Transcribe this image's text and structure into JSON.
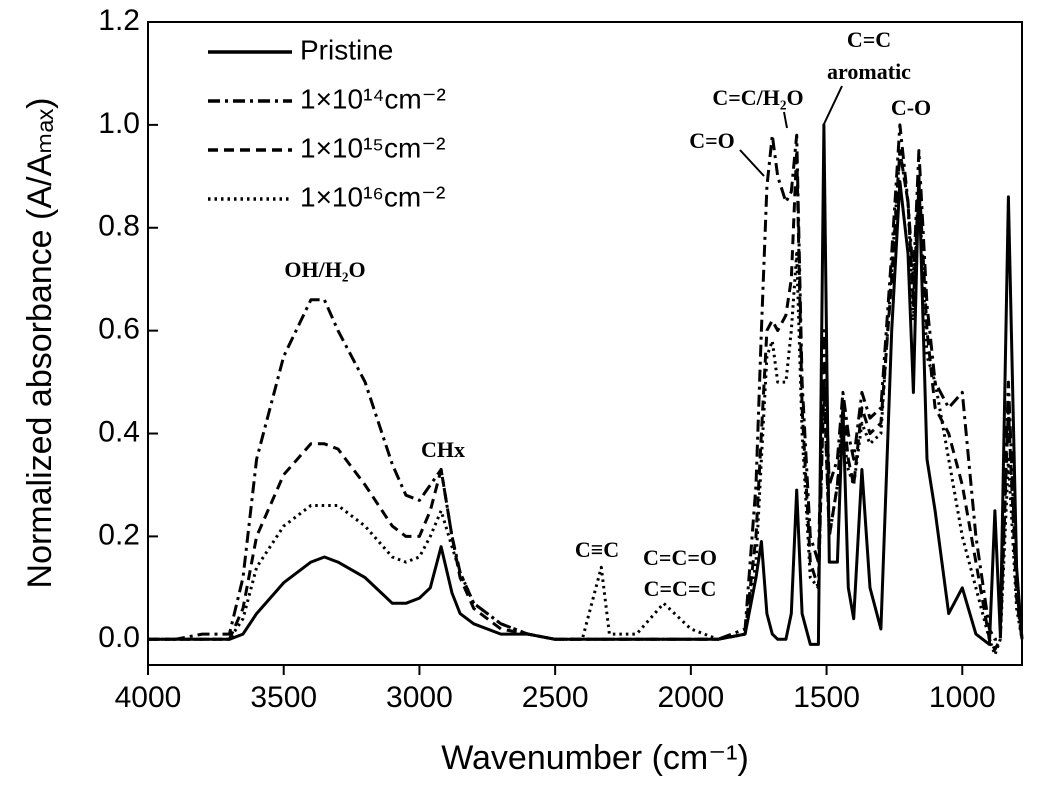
{
  "chart_data": {
    "type": "line",
    "xlabel": "Wavenumber (cm⁻¹)",
    "ylabel": "Normalized absorbance (A/Aₘₐₓ)",
    "x": [
      4000,
      3900,
      3800,
      3700,
      3650,
      3600,
      3500,
      3400,
      3350,
      3300,
      3200,
      3100,
      3050,
      3000,
      2960,
      2920,
      2880,
      2850,
      2800,
      2700,
      2600,
      2500,
      2400,
      2330,
      2300,
      2200,
      2100,
      2000,
      1900,
      1800,
      1760,
      1740,
      1720,
      1700,
      1680,
      1650,
      1630,
      1610,
      1590,
      1560,
      1530,
      1510,
      1490,
      1460,
      1440,
      1420,
      1400,
      1370,
      1340,
      1300,
      1260,
      1230,
      1200,
      1180,
      1160,
      1130,
      1100,
      1050,
      1000,
      950,
      900,
      880,
      860,
      830,
      800,
      780
    ],
    "series": [
      {
        "name": "Pristine",
        "color": "#000000",
        "line_style": "solid",
        "values": [
          0,
          0,
          0,
          0,
          0.01,
          0.05,
          0.11,
          0.15,
          0.16,
          0.15,
          0.12,
          0.07,
          0.07,
          0.08,
          0.1,
          0.18,
          0.09,
          0.05,
          0.03,
          0.01,
          0.01,
          0,
          0,
          0,
          0,
          0,
          0,
          0,
          0,
          0.01,
          0.12,
          0.19,
          0.05,
          0.01,
          0,
          0,
          0.05,
          0.29,
          0.05,
          -0.01,
          -0.01,
          1.0,
          0.15,
          0.15,
          0.45,
          0.1,
          0.04,
          0.33,
          0.1,
          0.02,
          0.6,
          0.89,
          0.75,
          0.48,
          0.9,
          0.35,
          0.25,
          0.05,
          0.1,
          0.01,
          -0.01,
          0.25,
          0.01,
          0.86,
          0.14,
          0
        ]
      },
      {
        "name": "1×10¹⁴cm⁻²",
        "color": "#000000",
        "line_style": "dashdot",
        "values": [
          0,
          0,
          0.01,
          0.01,
          0.12,
          0.35,
          0.55,
          0.66,
          0.66,
          0.6,
          0.5,
          0.34,
          0.28,
          0.27,
          0.3,
          0.33,
          0.2,
          0.13,
          0.07,
          0.03,
          0.01,
          0,
          0,
          0,
          0,
          0,
          0,
          0,
          0,
          0.02,
          0.3,
          0.6,
          0.88,
          0.98,
          0.9,
          0.85,
          0.87,
          0.98,
          0.5,
          0.2,
          0.15,
          0.6,
          0.3,
          0.35,
          0.48,
          0.4,
          0.35,
          0.48,
          0.43,
          0.45,
          0.75,
          1.0,
          0.85,
          0.7,
          0.95,
          0.65,
          0.5,
          0.45,
          0.48,
          0.2,
          0.02,
          0,
          0,
          0.5,
          0.1,
          0
        ]
      },
      {
        "name": "1×10¹⁵cm⁻²",
        "color": "#000000",
        "line_style": "dashed",
        "values": [
          0,
          0,
          0,
          0,
          0.06,
          0.2,
          0.32,
          0.38,
          0.38,
          0.37,
          0.3,
          0.22,
          0.2,
          0.2,
          0.25,
          0.33,
          0.2,
          0.12,
          0.06,
          0.02,
          0.01,
          0,
          0,
          0,
          0,
          0,
          0,
          0,
          0,
          0.01,
          0.2,
          0.4,
          0.6,
          0.62,
          0.6,
          0.63,
          0.7,
          0.95,
          0.45,
          0.15,
          0.1,
          0.5,
          0.2,
          0.3,
          0.45,
          0.35,
          0.3,
          0.45,
          0.4,
          0.42,
          0.7,
          0.95,
          0.85,
          0.65,
          0.9,
          0.6,
          0.45,
          0.4,
          0.3,
          0.15,
          0,
          -0.02,
          0,
          0.45,
          0.08,
          0
        ]
      },
      {
        "name": "1×10¹⁶cm⁻²",
        "color": "#000000",
        "line_style": "dotted",
        "values": [
          0,
          0,
          0,
          0,
          0.04,
          0.14,
          0.22,
          0.26,
          0.26,
          0.26,
          0.22,
          0.16,
          0.15,
          0.16,
          0.2,
          0.25,
          0.18,
          0.13,
          0.07,
          0.03,
          0.01,
          0,
          0,
          0.14,
          0.01,
          0.01,
          0.07,
          0.02,
          0,
          0.01,
          0.15,
          0.35,
          0.55,
          0.58,
          0.5,
          0.5,
          0.6,
          0.75,
          0.4,
          0.12,
          0.1,
          0.5,
          0.2,
          0.3,
          0.4,
          0.33,
          0.3,
          0.42,
          0.38,
          0.4,
          0.72,
          0.95,
          0.85,
          0.62,
          0.88,
          0.55,
          0.5,
          0.35,
          0.2,
          0.1,
          0,
          -0.03,
          0,
          0.35,
          0.06,
          0
        ]
      }
    ],
    "xlim": [
      4000,
      780
    ],
    "ylim": [
      -0.05,
      1.2
    ],
    "xticks": [
      4000,
      3500,
      3000,
      2500,
      2000,
      1500,
      1000
    ],
    "yticks": [
      {
        "value": 0,
        "label": "0.0"
      },
      0.2,
      0.4,
      0.6,
      0.8,
      {
        "value": 1,
        "label": "1.0"
      },
      1.2
    ],
    "legend": "upper left",
    "annotations": [
      "OH/H₂O",
      "CHx",
      "C≡C",
      "C=C=O",
      "C=C=C",
      "C=O",
      "C=C/H₂O",
      "C=C",
      "aromatic",
      "C-O"
    ]
  }
}
